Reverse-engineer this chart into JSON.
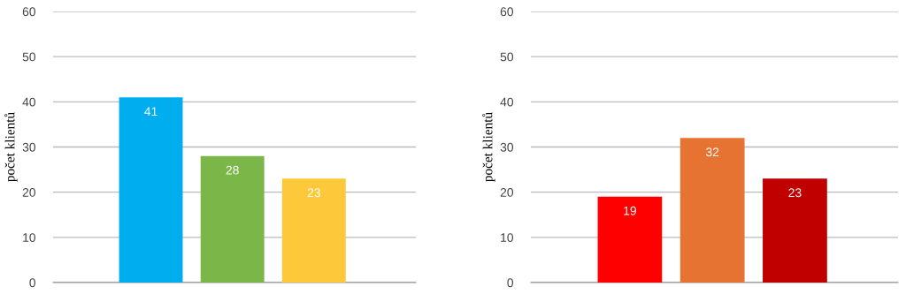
{
  "chart_data": [
    {
      "type": "bar",
      "ylabel": "počet klientů",
      "categories": [
        null,
        null,
        null
      ],
      "values": [
        41,
        28,
        23
      ],
      "colors": [
        "#00aeef",
        "#7ab648",
        "#fdc93b"
      ],
      "ylim": [
        0,
        60
      ],
      "yticks": [
        0,
        10,
        20,
        30,
        40,
        50,
        60
      ],
      "grid": "y",
      "data_labels": true,
      "tick_labels": "y"
    },
    {
      "type": "bar",
      "ylabel": "počet klientů",
      "categories": [
        null,
        null,
        null
      ],
      "values": [
        19,
        32,
        23
      ],
      "colors": [
        "#ff0000",
        "#e67332",
        "#c00000"
      ],
      "ylim": [
        0,
        60
      ],
      "yticks": [
        0,
        10,
        20,
        30,
        40,
        50,
        60
      ],
      "grid": "y",
      "data_labels": true,
      "tick_labels": "y"
    }
  ]
}
